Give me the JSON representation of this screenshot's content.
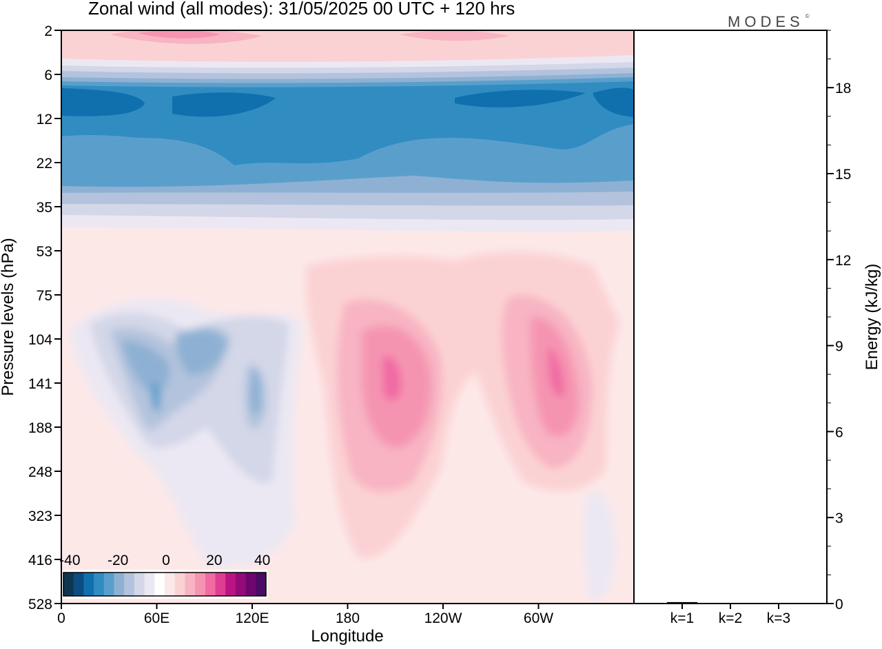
{
  "chart_data": {
    "type": "heatmap",
    "title": "Zonal wind (all modes):  31/05/2025  00 UTC  + 120 hrs",
    "brand": "MODES",
    "brand_mark": "©",
    "xlabel": "Longitude",
    "ylabel": "Pressure levels (hPa)",
    "x_ticks": [
      "0",
      "60E",
      "120E",
      "180",
      "120W",
      "60W"
    ],
    "y_ticks": [
      "2",
      "6",
      "12",
      "22",
      "35",
      "53",
      "75",
      "104",
      "141",
      "188",
      "248",
      "323",
      "416",
      "528"
    ],
    "colorbar": {
      "tick_labels": [
        "-40",
        "-20",
        "0",
        "20",
        "40"
      ],
      "colors": [
        "#10354f",
        "#0b4d80",
        "#0f70ad",
        "#318cc2",
        "#5a9fcc",
        "#8eb1d3",
        "#b3c3dd",
        "#d3d7e8",
        "#ece8f3",
        "#ffffff",
        "#fde8e8",
        "#fbd2d4",
        "#f8b4c2",
        "#f594b1",
        "#f16aa3",
        "#de3d92",
        "#bb1583",
        "#930a78",
        "#6e066f",
        "#4b0a63"
      ]
    },
    "features": [
      {
        "kind": "easterly-jet",
        "levels_hPa": [
          6,
          35
        ],
        "longitude_range": "0-360",
        "min_ms": -40
      },
      {
        "kind": "westerly-band",
        "levels_hPa": [
          2,
          5
        ],
        "longitude_range": "0-360",
        "max_ms": 20
      },
      {
        "kind": "westerly-jet",
        "center_longitude": "160W",
        "center_level_hPa": 141,
        "max_ms": 25
      },
      {
        "kind": "westerly-jet",
        "center_longitude": "50W",
        "center_level_hPa": 141,
        "max_ms": 25
      },
      {
        "kind": "easterly",
        "center_longitude": "60E",
        "center_level_hPa": 141,
        "min_ms": -15
      },
      {
        "kind": "easterly",
        "center_longitude": "120E",
        "center_level_hPa": 141,
        "min_ms": -15
      }
    ],
    "energy_panel": {
      "ylabel": "Energy (kJ/kg)",
      "y_ticks": [
        "0",
        "3",
        "6",
        "9",
        "12",
        "15",
        "18"
      ],
      "ylim": [
        0,
        20
      ],
      "categories": [
        "k=1",
        "k=2",
        "k=3"
      ],
      "values": [
        0.05,
        0.02,
        0.01
      ]
    }
  }
}
